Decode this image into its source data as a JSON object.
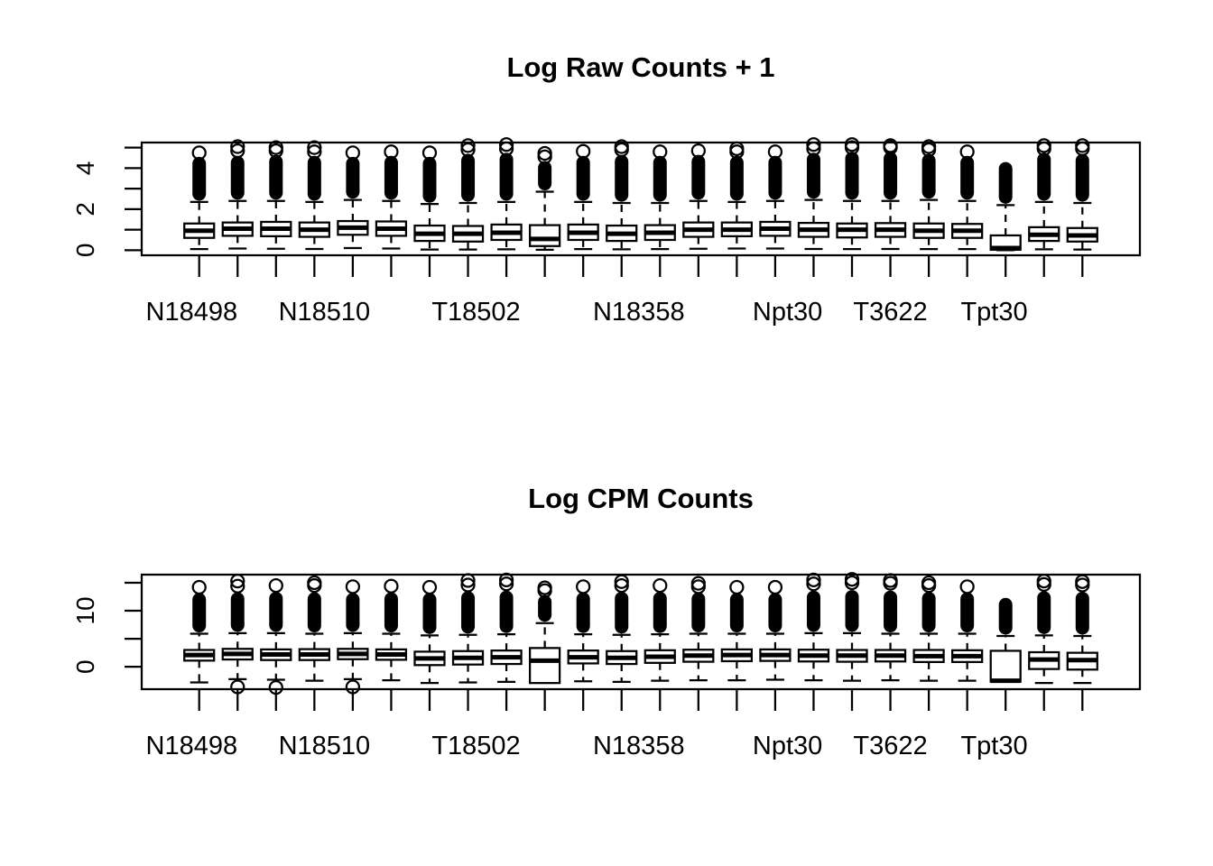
{
  "colors": {
    "foreground": "#000000",
    "background": "#ffffff"
  },
  "chart_data": [
    {
      "type": "boxplot",
      "title": "Log Raw Counts + 1",
      "n_boxes": 24,
      "ylim": [
        -0.25,
        5.25
      ],
      "yticks": [
        0,
        1,
        2,
        3,
        4,
        5
      ],
      "ytick_labels": [
        "0",
        "2",
        "4"
      ],
      "ytick_label_values": [
        0,
        2,
        4
      ],
      "x_axis_labels": [
        {
          "text": "N18498",
          "pos": 0.05
        },
        {
          "text": "N18510",
          "pos": 0.183
        },
        {
          "text": "T18502",
          "pos": 0.335
        },
        {
          "text": "N18358",
          "pos": 0.498
        },
        {
          "text": "Npt30",
          "pos": 0.647
        },
        {
          "text": "T3622",
          "pos": 0.75
        },
        {
          "text": "Tpt30",
          "pos": 0.854
        }
      ],
      "boxes": [
        {
          "median": 0.95,
          "q1": 0.6,
          "q3": 1.3,
          "whisker_low": 0.05,
          "whisker_high": 2.35,
          "col_top": 4.55,
          "outliers_top": [
            4.75
          ],
          "outliers_low": []
        },
        {
          "median": 1.05,
          "q1": 0.7,
          "q3": 1.35,
          "whisker_low": 0.08,
          "whisker_high": 2.4,
          "col_top": 4.6,
          "outliers_top": [
            4.85,
            5.05
          ],
          "outliers_low": []
        },
        {
          "median": 1.05,
          "q1": 0.68,
          "q3": 1.38,
          "whisker_low": 0.07,
          "whisker_high": 2.4,
          "col_top": 4.65,
          "outliers_top": [
            4.85,
            5.0
          ],
          "outliers_low": []
        },
        {
          "median": 1.0,
          "q1": 0.65,
          "q3": 1.35,
          "whisker_low": 0.06,
          "whisker_high": 2.35,
          "col_top": 4.6,
          "outliers_top": [
            4.8,
            5.0
          ],
          "outliers_low": []
        },
        {
          "median": 1.1,
          "q1": 0.75,
          "q3": 1.42,
          "whisker_low": 0.1,
          "whisker_high": 2.45,
          "col_top": 4.55,
          "outliers_top": [
            4.75
          ],
          "outliers_low": []
        },
        {
          "median": 1.05,
          "q1": 0.7,
          "q3": 1.4,
          "whisker_low": 0.08,
          "whisker_high": 2.4,
          "col_top": 4.6,
          "outliers_top": [
            4.8
          ],
          "outliers_low": []
        },
        {
          "median": 0.8,
          "q1": 0.45,
          "q3": 1.2,
          "whisker_low": 0.03,
          "whisker_high": 2.25,
          "col_top": 4.55,
          "outliers_top": [
            4.75
          ],
          "outliers_low": []
        },
        {
          "median": 0.8,
          "q1": 0.42,
          "q3": 1.18,
          "whisker_low": 0.03,
          "whisker_high": 2.3,
          "col_top": 4.7,
          "outliers_top": [
            4.9,
            5.1
          ],
          "outliers_low": []
        },
        {
          "median": 0.85,
          "q1": 0.5,
          "q3": 1.25,
          "whisker_low": 0.04,
          "whisker_high": 2.35,
          "col_top": 4.75,
          "outliers_top": [
            4.95,
            5.15
          ],
          "outliers_low": []
        },
        {
          "median": 0.55,
          "q1": 0.2,
          "q3": 1.22,
          "whisker_low": 0.02,
          "whisker_high": 2.85,
          "col_top": 4.35,
          "outliers_top": [
            4.55,
            4.72
          ],
          "outliers_low": []
        },
        {
          "median": 0.85,
          "q1": 0.5,
          "q3": 1.25,
          "whisker_low": 0.05,
          "whisker_high": 2.35,
          "col_top": 4.6,
          "outliers_top": [
            4.82
          ],
          "outliers_low": []
        },
        {
          "median": 0.8,
          "q1": 0.45,
          "q3": 1.2,
          "whisker_low": 0.04,
          "whisker_high": 2.3,
          "col_top": 4.65,
          "outliers_top": [
            4.9,
            5.05
          ],
          "outliers_low": []
        },
        {
          "median": 0.85,
          "q1": 0.5,
          "q3": 1.22,
          "whisker_low": 0.05,
          "whisker_high": 2.3,
          "col_top": 4.6,
          "outliers_top": [
            4.8
          ],
          "outliers_low": []
        },
        {
          "median": 1.0,
          "q1": 0.65,
          "q3": 1.35,
          "whisker_low": 0.07,
          "whisker_high": 2.4,
          "col_top": 4.65,
          "outliers_top": [
            4.85
          ],
          "outliers_low": []
        },
        {
          "median": 1.0,
          "q1": 0.68,
          "q3": 1.35,
          "whisker_low": 0.08,
          "whisker_high": 2.35,
          "col_top": 4.6,
          "outliers_top": [
            4.8,
            4.95
          ],
          "outliers_low": []
        },
        {
          "median": 1.05,
          "q1": 0.7,
          "q3": 1.38,
          "whisker_low": 0.08,
          "whisker_high": 2.4,
          "col_top": 4.6,
          "outliers_top": [
            4.8
          ],
          "outliers_low": []
        },
        {
          "median": 1.0,
          "q1": 0.65,
          "q3": 1.33,
          "whisker_low": 0.06,
          "whisker_high": 2.45,
          "col_top": 4.75,
          "outliers_top": [
            4.95,
            5.15
          ],
          "outliers_low": []
        },
        {
          "median": 1.0,
          "q1": 0.62,
          "q3": 1.3,
          "whisker_low": 0.05,
          "whisker_high": 2.4,
          "col_top": 4.8,
          "outliers_top": [
            5.0,
            5.15
          ],
          "outliers_low": []
        },
        {
          "median": 1.0,
          "q1": 0.65,
          "q3": 1.32,
          "whisker_low": 0.06,
          "whisker_high": 2.4,
          "col_top": 4.8,
          "outliers_top": [
            5.0,
            5.1
          ],
          "outliers_low": []
        },
        {
          "median": 0.95,
          "q1": 0.6,
          "q3": 1.3,
          "whisker_low": 0.05,
          "whisker_high": 2.45,
          "col_top": 4.7,
          "outliers_top": [
            4.9,
            5.05
          ],
          "outliers_low": []
        },
        {
          "median": 0.95,
          "q1": 0.6,
          "q3": 1.28,
          "whisker_low": 0.05,
          "whisker_high": 2.4,
          "col_top": 4.6,
          "outliers_top": [
            4.8
          ],
          "outliers_low": []
        },
        {
          "median": 0.1,
          "q1": 0.02,
          "q3": 0.72,
          "whisker_low": 0.0,
          "whisker_high": 2.2,
          "col_top": 4.3,
          "outliers_top": [],
          "outliers_low": []
        },
        {
          "median": 0.75,
          "q1": 0.45,
          "q3": 1.12,
          "whisker_low": 0.04,
          "whisker_high": 2.35,
          "col_top": 4.75,
          "outliers_top": [
            4.95,
            5.1
          ],
          "outliers_low": []
        },
        {
          "median": 0.72,
          "q1": 0.42,
          "q3": 1.08,
          "whisker_low": 0.03,
          "whisker_high": 2.3,
          "col_top": 4.7,
          "outliers_top": [
            4.95,
            5.1
          ],
          "outliers_low": []
        }
      ]
    },
    {
      "type": "boxplot",
      "title": "Log CPM Counts",
      "n_boxes": 24,
      "ylim": [
        -4.0,
        16.45
      ],
      "yticks": [
        0,
        5,
        10,
        15
      ],
      "ytick_labels": [
        "0",
        "10"
      ],
      "ytick_label_values": [
        0,
        10
      ],
      "x_axis_labels": [
        {
          "text": "N18498",
          "pos": 0.05
        },
        {
          "text": "N18510",
          "pos": 0.183
        },
        {
          "text": "T18502",
          "pos": 0.335
        },
        {
          "text": "N18358",
          "pos": 0.498
        },
        {
          "text": "Npt30",
          "pos": 0.647
        },
        {
          "text": "T3622",
          "pos": 0.75
        },
        {
          "text": "Tpt30",
          "pos": 0.854
        }
      ],
      "boxes": [
        {
          "median": 2.1,
          "q1": 1.1,
          "q3": 3.0,
          "whisker_low": -2.8,
          "whisker_high": 5.9,
          "col_top": 13.2,
          "outliers_top": [
            14.2
          ],
          "outliers_low": []
        },
        {
          "median": 2.3,
          "q1": 1.3,
          "q3": 3.2,
          "whisker_low": -2.2,
          "whisker_high": 6.0,
          "col_top": 13.3,
          "outliers_top": [
            14.4,
            15.3
          ],
          "outliers_low": [
            -3.6
          ]
        },
        {
          "median": 2.2,
          "q1": 1.2,
          "q3": 3.1,
          "whisker_low": -2.3,
          "whisker_high": 6.0,
          "col_top": 13.4,
          "outliers_top": [
            14.5
          ],
          "outliers_low": [
            -3.7
          ]
        },
        {
          "median": 2.2,
          "q1": 1.2,
          "q3": 3.15,
          "whisker_low": -2.5,
          "whisker_high": 5.9,
          "col_top": 13.3,
          "outliers_top": [
            14.5,
            15.0
          ],
          "outliers_low": []
        },
        {
          "median": 2.3,
          "q1": 1.35,
          "q3": 3.2,
          "whisker_low": -2.2,
          "whisker_high": 6.0,
          "col_top": 13.2,
          "outliers_top": [
            14.3
          ],
          "outliers_low": [
            -3.6
          ]
        },
        {
          "median": 2.2,
          "q1": 1.25,
          "q3": 3.1,
          "whisker_low": -2.4,
          "whisker_high": 5.9,
          "col_top": 13.3,
          "outliers_top": [
            14.4
          ],
          "outliers_low": []
        },
        {
          "median": 1.5,
          "q1": 0.3,
          "q3": 2.7,
          "whisker_low": -2.9,
          "whisker_high": 5.6,
          "col_top": 13.2,
          "outliers_top": [
            14.2
          ],
          "outliers_low": []
        },
        {
          "median": 1.6,
          "q1": 0.4,
          "q3": 2.8,
          "whisker_low": -2.8,
          "whisker_high": 5.7,
          "col_top": 13.5,
          "outliers_top": [
            14.6,
            15.4
          ],
          "outliers_low": []
        },
        {
          "median": 1.7,
          "q1": 0.5,
          "q3": 2.9,
          "whisker_low": -2.7,
          "whisker_high": 5.8,
          "col_top": 13.6,
          "outliers_top": [
            14.8,
            15.5
          ],
          "outliers_low": []
        },
        {
          "median": 1.1,
          "q1": -2.9,
          "q3": 3.35,
          "whisker_low": -2.9,
          "whisker_high": 7.8,
          "col_top": 12.8,
          "outliers_top": [
            13.6,
            14.1
          ],
          "outliers_low": []
        },
        {
          "median": 1.7,
          "q1": 0.6,
          "q3": 2.9,
          "whisker_low": -2.6,
          "whisker_high": 5.8,
          "col_top": 13.3,
          "outliers_top": [
            14.3
          ],
          "outliers_low": []
        },
        {
          "median": 1.6,
          "q1": 0.5,
          "q3": 2.8,
          "whisker_low": -2.7,
          "whisker_high": 5.7,
          "col_top": 13.4,
          "outliers_top": [
            14.5,
            15.2
          ],
          "outliers_low": []
        },
        {
          "median": 1.8,
          "q1": 0.7,
          "q3": 2.95,
          "whisker_low": -2.5,
          "whisker_high": 5.8,
          "col_top": 13.4,
          "outliers_top": [
            14.5
          ],
          "outliers_low": []
        },
        {
          "median": 2.0,
          "q1": 0.9,
          "q3": 3.05,
          "whisker_low": -2.4,
          "whisker_high": 5.9,
          "col_top": 13.3,
          "outliers_top": [
            14.3,
            14.9
          ],
          "outliers_low": []
        },
        {
          "median": 2.1,
          "q1": 1.0,
          "q3": 3.1,
          "whisker_low": -2.4,
          "whisker_high": 5.9,
          "col_top": 13.2,
          "outliers_top": [
            14.2
          ],
          "outliers_low": []
        },
        {
          "median": 2.1,
          "q1": 1.05,
          "q3": 3.1,
          "whisker_low": -2.3,
          "whisker_high": 5.9,
          "col_top": 13.2,
          "outliers_top": [
            14.2
          ],
          "outliers_low": []
        },
        {
          "median": 2.0,
          "q1": 0.95,
          "q3": 3.05,
          "whisker_low": -2.4,
          "whisker_high": 6.0,
          "col_top": 13.6,
          "outliers_top": [
            14.8,
            15.5
          ],
          "outliers_low": []
        },
        {
          "median": 2.0,
          "q1": 0.9,
          "q3": 3.0,
          "whisker_low": -2.5,
          "whisker_high": 6.0,
          "col_top": 13.7,
          "outliers_top": [
            15.0,
            15.6
          ],
          "outliers_low": []
        },
        {
          "median": 2.0,
          "q1": 0.95,
          "q3": 3.0,
          "whisker_low": -2.4,
          "whisker_high": 5.9,
          "col_top": 13.6,
          "outliers_top": [
            14.9,
            15.4
          ],
          "outliers_low": []
        },
        {
          "median": 1.9,
          "q1": 0.85,
          "q3": 3.0,
          "whisker_low": -2.5,
          "whisker_high": 5.9,
          "col_top": 13.4,
          "outliers_top": [
            14.5,
            15.0
          ],
          "outliers_low": []
        },
        {
          "median": 1.9,
          "q1": 0.85,
          "q3": 2.95,
          "whisker_low": -2.5,
          "whisker_high": 5.9,
          "col_top": 13.3,
          "outliers_top": [
            14.3
          ],
          "outliers_low": []
        },
        {
          "median": -2.5,
          "q1": -2.65,
          "q3": 2.85,
          "whisker_low": -2.7,
          "whisker_high": 5.5,
          "col_top": 12.3,
          "outliers_top": [],
          "outliers_low": []
        },
        {
          "median": 1.3,
          "q1": -0.4,
          "q3": 2.6,
          "whisker_low": -2.9,
          "whisker_high": 5.6,
          "col_top": 13.5,
          "outliers_top": [
            14.7,
            15.3
          ],
          "outliers_low": []
        },
        {
          "median": 1.2,
          "q1": -0.5,
          "q3": 2.5,
          "whisker_low": -2.9,
          "whisker_high": 5.5,
          "col_top": 13.4,
          "outliers_top": [
            14.6,
            15.2
          ],
          "outliers_low": []
        }
      ]
    }
  ]
}
